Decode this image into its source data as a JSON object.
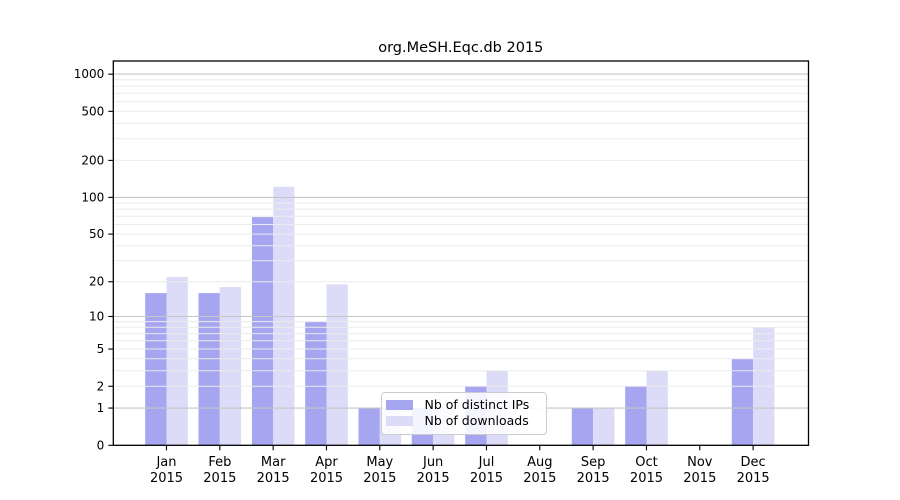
{
  "chart_data": {
    "type": "bar",
    "title": "org.MeSH.Eqc.db 2015",
    "x": {
      "categories": [
        "Jan",
        "Feb",
        "Mar",
        "Apr",
        "May",
        "Jun",
        "Jul",
        "Aug",
        "Sep",
        "Oct",
        "Nov",
        "Dec"
      ],
      "year_label": "2015"
    },
    "series": [
      {
        "name": "Nb of distinct IPs",
        "color": "#a5a5f0",
        "values": [
          16,
          16,
          69,
          9,
          1,
          1,
          2,
          0,
          1,
          2,
          0,
          4
        ]
      },
      {
        "name": "Nb of downloads",
        "color": "#dcdcf8",
        "values": [
          22,
          18,
          122,
          19,
          1,
          1,
          3,
          0,
          1,
          3,
          0,
          8
        ]
      }
    ],
    "yscale": "log1p",
    "yticks": [
      0,
      1,
      2,
      5,
      10,
      20,
      50,
      100,
      200,
      500,
      1000
    ],
    "ylim": [
      0,
      1270
    ],
    "grid": true,
    "legend_position": "bottom-center",
    "colors": {
      "grid_minor": "#ebebeb",
      "grid_major": "#c6c6c6",
      "axis": "#000000",
      "legend_border": "#cccccc",
      "legend_bg": "#ffffff"
    }
  }
}
